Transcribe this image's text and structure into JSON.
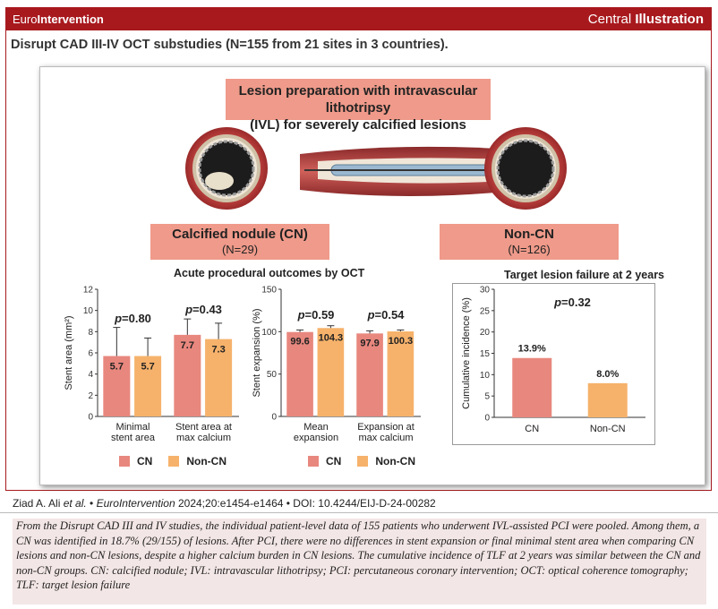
{
  "header": {
    "journal_prefix": "Euro",
    "journal_suffix": "Intervention",
    "label_light": "Central ",
    "label_bold": "Illustration"
  },
  "subtitle": "Disrupt CAD III-IV OCT substudies (N=155 from 21 sites in 3 countries).",
  "ivl_box": {
    "line1": "Lesion preparation with intravascular lithotripsy",
    "line2": "(IVL) for severely calcified lesions"
  },
  "cn_box": {
    "title": "Calcified nodule (CN)",
    "n": "(N=29)"
  },
  "noncn_box": {
    "title": "Non-CN",
    "n": "(N=126)"
  },
  "left_section_title": "Acute procedural outcomes by OCT",
  "right_section_title": "Target lesion failure at 2 years",
  "legend": {
    "cn": "CN",
    "noncn": "Non-CN"
  },
  "colors": {
    "cn": "#e8877e",
    "noncn": "#f6b26b",
    "accent": "#a8191e",
    "box": "#ef9a8a"
  },
  "chart_data": [
    {
      "type": "bar",
      "ylabel": "Stent area (mm²)",
      "ylim": [
        0,
        12
      ],
      "yticks": [
        0,
        2,
        4,
        6,
        8,
        10,
        12
      ],
      "categories": [
        "Minimal stent area",
        "Stent area at max calcium"
      ],
      "category_lines": [
        [
          "Minimal",
          "stent area"
        ],
        [
          "Stent area at",
          "max calcium"
        ]
      ],
      "series": [
        {
          "name": "CN",
          "values": [
            5.7,
            7.7
          ],
          "error_upper": [
            8.4,
            9.2
          ]
        },
        {
          "name": "Non-CN",
          "values": [
            5.7,
            7.3
          ],
          "error_upper": [
            7.4,
            8.8
          ]
        }
      ],
      "p_values": [
        "0.80",
        "0.43"
      ]
    },
    {
      "type": "bar",
      "ylabel": "Stent expansion (%)",
      "ylim": [
        0,
        150
      ],
      "yticks": [
        0,
        50,
        100,
        150
      ],
      "categories": [
        "Mean expansion",
        "Expansion at max calcium"
      ],
      "category_lines": [
        [
          "Mean",
          "expansion"
        ],
        [
          "Expansion at",
          "max calcium"
        ]
      ],
      "series": [
        {
          "name": "CN",
          "values": [
            99.6,
            97.9
          ],
          "error_upper": [
            102,
            101
          ]
        },
        {
          "name": "Non-CN",
          "values": [
            104.3,
            100.3
          ],
          "error_upper": [
            107,
            102
          ]
        }
      ],
      "p_values": [
        "0.59",
        "0.54"
      ]
    },
    {
      "type": "bar",
      "ylabel": "Cumulative incidence  (%)",
      "ylim": [
        0,
        30
      ],
      "yticks": [
        0,
        5,
        10,
        15,
        20,
        25,
        30
      ],
      "categories": [
        "CN",
        "Non-CN"
      ],
      "values": [
        13.9,
        8.0
      ],
      "value_labels": [
        "13.9%",
        "8.0%"
      ],
      "p_value": "0.32"
    }
  ],
  "citation": {
    "authors": "Ziad A. Ali ",
    "etal": "et al.",
    "sep1": " • ",
    "journal": "EuroIntervention",
    "ref": " 2024;20:e1454-e1464 • DOI: 10.4244/EIJ-D-24-00282"
  },
  "caption": "From the Disrupt CAD III and IV studies, the individual patient-level data of 155 patients who underwent IVL-assisted PCI were pooled. Among them, a CN was identified in 18.7% (29/155) of lesions. After PCI, there were no differences in stent expansion or final minimal stent area when comparing CN lesions and non-CN lesions, despite a higher calcium burden in CN lesions. The cumulative incidence of TLF at 2 years was similar between the CN and non-CN groups. CN: calcified nodule; IVL: intravascular lithotripsy; PCI: percutaneous coronary intervention; OCT: optical coherence tomography; TLF: target lesion failure"
}
